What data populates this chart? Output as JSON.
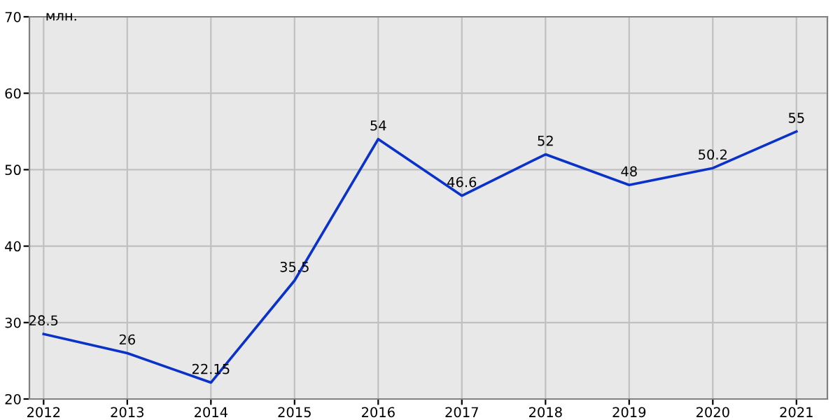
{
  "chart_data": {
    "type": "line",
    "ylabel": "млн.",
    "x": [
      2012,
      2013,
      2014,
      2015,
      2016,
      2017,
      2018,
      2019,
      2020,
      2021
    ],
    "series": [
      {
        "color": "#0a32c8",
        "values": [
          28.5,
          26,
          22.15,
          35.5,
          54,
          46.6,
          52,
          48,
          50.2,
          55
        ]
      }
    ],
    "xlim": [
      2011.83,
      2021.37
    ],
    "xticks": [
      2012,
      2013,
      2014,
      2015,
      2016,
      2017,
      2018,
      2019,
      2020,
      2021
    ],
    "ylim": [
      20,
      70
    ],
    "yticks": [
      20,
      30,
      40,
      50,
      60,
      70
    ],
    "grid": true,
    "data_labels": true,
    "marker": "none",
    "line_style": "solid",
    "legend": false
  }
}
